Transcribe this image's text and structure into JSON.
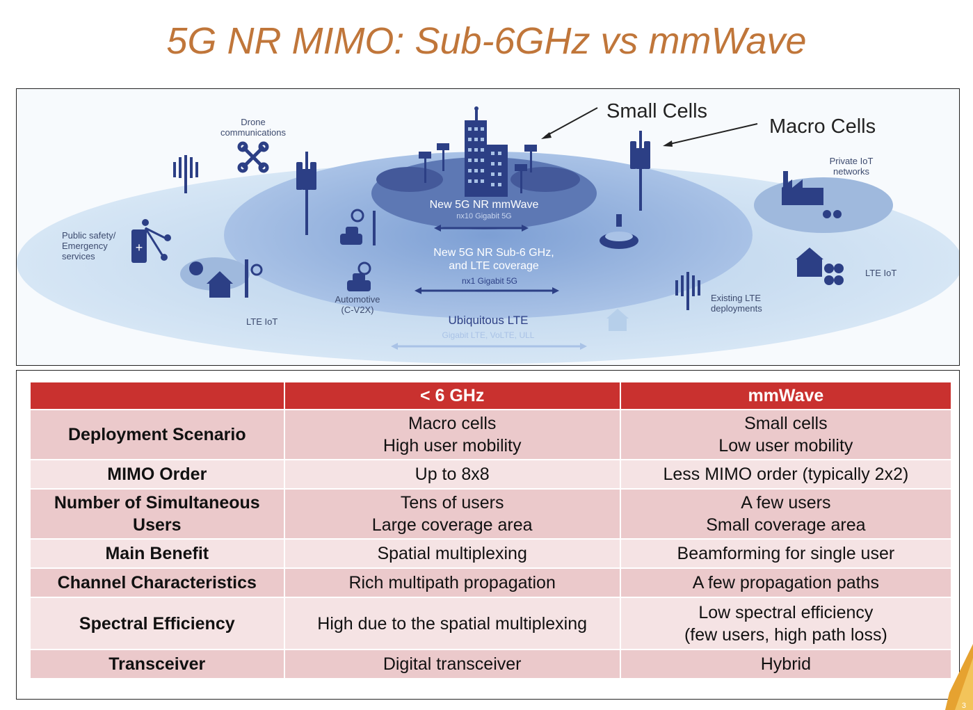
{
  "title": "5G NR MIMO: Sub-6GHz vs mmWave",
  "diagram": {
    "callouts": {
      "small_cells": "Small Cells",
      "macro_cells": "Macro Cells"
    },
    "labels": {
      "drone": [
        "Drone",
        "communications"
      ],
      "private_iot": [
        "Private IoT",
        "networks"
      ],
      "public_safety": [
        "Public safety/",
        "Emergency",
        "services"
      ],
      "lte_iot_left": "LTE IoT",
      "lte_iot_right": "LTE IoT",
      "automotive": [
        "Automotive",
        "(C-V2X)"
      ],
      "existing_lte": [
        "Existing LTE",
        "deployments"
      ],
      "mmwave": "New 5G NR mmWave",
      "mmwave_sub": "nx10 Gigabit 5G",
      "sub6": [
        "New 5G NR Sub-6 GHz,",
        "and LTE coverage"
      ],
      "sub6_sub": "nx1 Gigabit 5G",
      "ubiquitous": "Ubiquitous LTE",
      "ubiquitous_sub": "Gigabit LTE, VoLTE, ULL"
    },
    "colors": {
      "outer": "#c5daf0",
      "middle": "#8fb0dc",
      "inner": "#5d78b4",
      "icon": "#2c3f85"
    }
  },
  "table": {
    "headers": [
      "",
      "< 6 GHz",
      "mmWave"
    ],
    "rows": [
      {
        "label": "Deployment Scenario",
        "sub6": [
          "Macro cells",
          "High user mobility"
        ],
        "mmwave": [
          "Small cells",
          "Low user mobility"
        ]
      },
      {
        "label": "MIMO Order",
        "sub6": [
          "Up to 8x8"
        ],
        "mmwave": [
          "Less MIMO order (typically 2x2)"
        ]
      },
      {
        "label": "Number of Simultaneous Users",
        "sub6": [
          "Tens of users",
          "Large coverage area"
        ],
        "mmwave": [
          "A few users",
          "Small coverage area"
        ]
      },
      {
        "label": "Main Benefit",
        "sub6": [
          "Spatial multiplexing"
        ],
        "mmwave": [
          "Beamforming for single user"
        ]
      },
      {
        "label": "Channel Characteristics",
        "sub6": [
          "Rich multipath propagation"
        ],
        "mmwave": [
          "A few propagation paths"
        ]
      },
      {
        "label": "Spectral Efficiency",
        "sub6": [
          "High due to the spatial multiplexing"
        ],
        "mmwave": [
          "Low spectral efficiency",
          "(few users, high path loss)"
        ]
      },
      {
        "label": "Transceiver",
        "sub6": [
          "Digital transceiver"
        ],
        "mmwave": [
          "Hybrid"
        ]
      }
    ]
  },
  "page_number": "3"
}
